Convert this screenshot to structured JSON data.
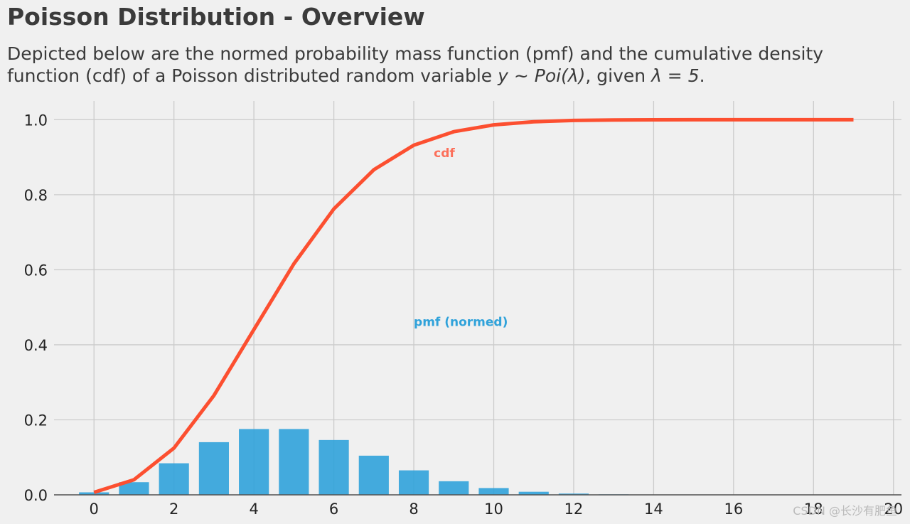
{
  "header": {
    "title": "Poisson Distribution - Overview",
    "subtitle_line1": "Depicted below are the normed probability mass function (pmf) and the cumulative density",
    "subtitle_line2_prefix": "function (cdf) of a Poisson distributed random variable ",
    "subtitle_math1": "y ~ Poi(λ)",
    "subtitle_line2_mid": ", given ",
    "subtitle_math2": "λ = 5",
    "subtitle_line2_suffix": "."
  },
  "watermark": "CSDN @长沙有肥鱼",
  "colors": {
    "background": "#f0f0f0",
    "grid": "#cbcbcb",
    "pmf": "#30a2da",
    "cdf": "#fc4f30",
    "cdf_label": "#fc6f5a",
    "baseline": "#555555"
  },
  "chart_data": {
    "type": "bar",
    "title": "Poisson Distribution - Overview",
    "xlim": [
      -1,
      20.2
    ],
    "ylim": [
      0,
      1.05
    ],
    "xticks": [
      0,
      2,
      4,
      6,
      8,
      10,
      12,
      14,
      16,
      18,
      20
    ],
    "yticks": [
      0.0,
      0.2,
      0.4,
      0.6,
      0.8,
      1.0
    ],
    "xtick_labels": [
      "0",
      "2",
      "4",
      "6",
      "8",
      "10",
      "12",
      "14",
      "16",
      "18",
      "20"
    ],
    "ytick_labels": [
      "0.0",
      "0.2",
      "0.4",
      "0.6",
      "0.8",
      "1.0"
    ],
    "grid": true,
    "series": [
      {
        "name": "pmf (normed)",
        "kind": "bar",
        "x": [
          0,
          1,
          2,
          3,
          4,
          5,
          6,
          7,
          8,
          9,
          10,
          11,
          12,
          13,
          14,
          15,
          16,
          17,
          18,
          19
        ],
        "values": [
          0.0067,
          0.0337,
          0.0842,
          0.1404,
          0.1755,
          0.1755,
          0.1462,
          0.1044,
          0.0653,
          0.0363,
          0.0181,
          0.0082,
          0.0034,
          0.0013,
          0.0005,
          0.0002,
          0.0,
          0.0,
          0.0,
          0.0
        ]
      },
      {
        "name": "cdf",
        "kind": "line",
        "x": [
          0,
          1,
          2,
          3,
          4,
          5,
          6,
          7,
          8,
          9,
          10,
          11,
          12,
          13,
          14,
          15,
          16,
          17,
          18,
          19
        ],
        "values": [
          0.0067,
          0.0404,
          0.1247,
          0.265,
          0.4405,
          0.616,
          0.7622,
          0.8666,
          0.9319,
          0.9682,
          0.9863,
          0.9945,
          0.998,
          0.9993,
          0.9998,
          0.9999,
          1.0,
          1.0,
          1.0,
          1.0
        ]
      }
    ],
    "annotations": [
      {
        "text": "cdf",
        "x": 8.5,
        "y": 0.9
      },
      {
        "text": "pmf (normed)",
        "x": 8.0,
        "y": 0.45
      }
    ]
  }
}
